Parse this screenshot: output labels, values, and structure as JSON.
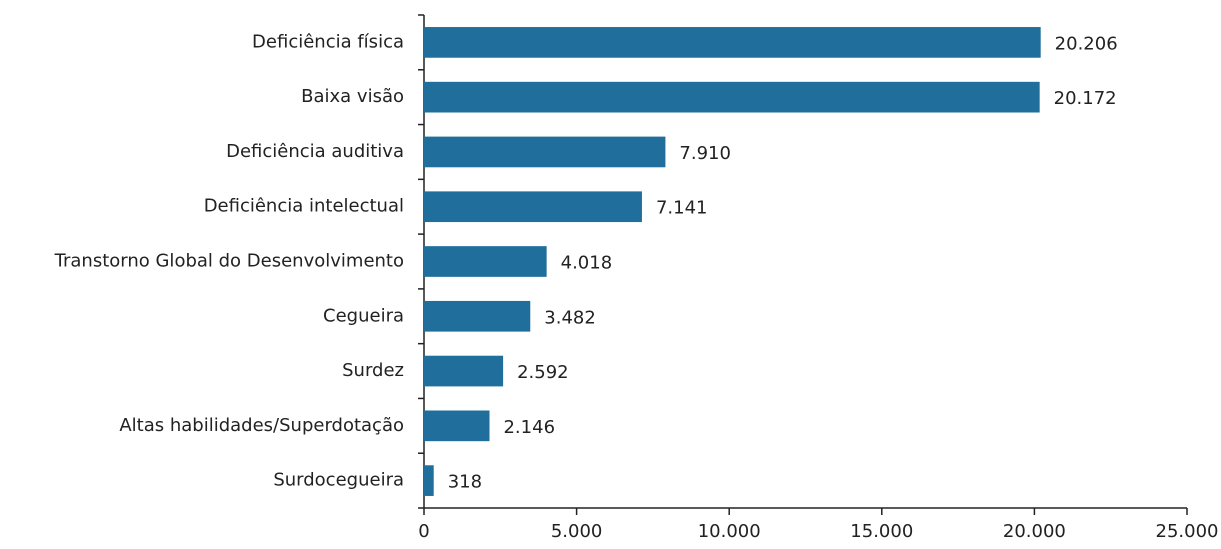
{
  "chart_data": {
    "type": "bar",
    "orientation": "horizontal",
    "categories": [
      "Deficiência física",
      "Baixa visão",
      "Deficiência auditiva",
      "Deficiência intelectual",
      "Transtorno Global do Desenvolvimento",
      "Cegueira",
      "Surdez",
      "Altas habilidades/Superdotação",
      "Surdocegueira"
    ],
    "values": [
      20206,
      20172,
      7910,
      7141,
      4018,
      3482,
      2592,
      2146,
      318
    ],
    "value_labels": [
      "20.206",
      "20.172",
      "7.910",
      "7.141",
      "4.018",
      "3.482",
      "2.592",
      "2.146",
      "318"
    ],
    "color": "#1f6e9c",
    "xlim": [
      0,
      25000
    ],
    "xticks": [
      0,
      {
        "value": 5000,
        "label": "5.000"
      },
      {
        "value": 10000,
        "label": "10.000"
      },
      {
        "value": 15000,
        "label": "15.000"
      },
      {
        "value": 20000,
        "label": "20.000"
      },
      {
        "value": 25000,
        "label": "25.000"
      }
    ],
    "grid": false
  }
}
